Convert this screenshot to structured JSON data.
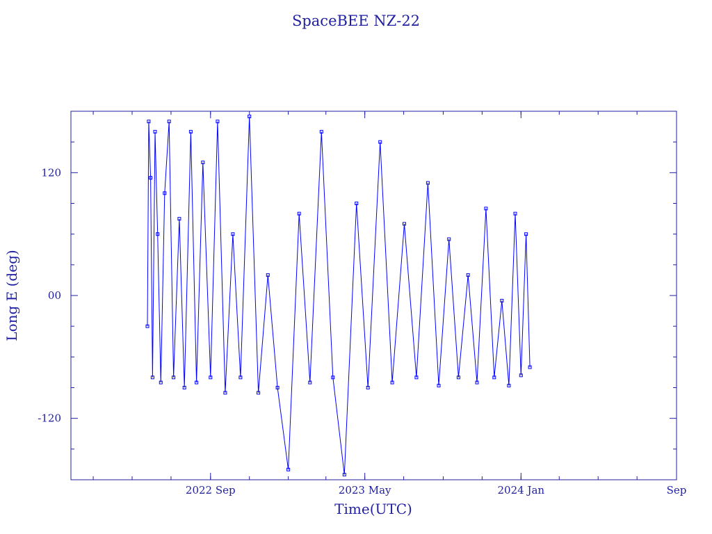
{
  "chart_data": {
    "type": "line",
    "title": "SpaceBEE NZ-22",
    "xlabel": "Time(UTC)",
    "ylabel": "Long E (deg)",
    "xlim": [
      "2022-01-25",
      "2024-09-01"
    ],
    "ylim": [
      -180,
      180
    ],
    "x_ticks": [
      {
        "date": "2022-09-01",
        "label": "2022 Sep"
      },
      {
        "date": "2023-05-01",
        "label": "2023 May"
      },
      {
        "date": "2024-01-01",
        "label": "2024 Jan"
      },
      {
        "date": "2024-09-01",
        "label": "Sep"
      }
    ],
    "y_ticks": [
      {
        "value": 120,
        "label": "120"
      },
      {
        "value": 0,
        "label": "00"
      },
      {
        "value": -120,
        "label": "-120"
      }
    ],
    "grid": false,
    "color": "#0000ff",
    "frame_color": "#1f1f9f",
    "series": [
      {
        "marker": "square",
        "x": [
          "2022-05-25",
          "2022-05-27",
          "2022-05-30",
          "2022-06-02",
          "2022-06-06",
          "2022-06-10",
          "2022-06-15",
          "2022-06-21",
          "2022-06-28",
          "2022-07-05",
          "2022-07-14",
          "2022-07-22",
          "2022-08-01",
          "2022-08-10",
          "2022-08-20",
          "2022-09-01",
          "2022-09-12",
          "2022-09-24",
          "2022-10-06",
          "2022-10-18",
          "2022-11-01",
          "2022-11-15",
          "2022-11-30",
          "2022-12-15",
          "2023-01-01",
          "2023-01-18",
          "2023-02-04",
          "2023-02-22",
          "2023-03-12",
          "2023-03-30",
          "2023-04-18",
          "2023-05-06",
          "2023-05-25",
          "2023-06-13",
          "2023-07-02",
          "2023-07-21",
          "2023-08-08",
          "2023-08-25",
          "2023-09-10",
          "2023-09-25",
          "2023-10-10",
          "2023-10-24",
          "2023-11-07",
          "2023-11-20",
          "2023-12-02",
          "2023-12-13",
          "2023-12-23",
          "2024-01-01",
          "2024-01-09",
          "2024-01-15"
        ],
        "y": [
          -30,
          170,
          115,
          -80,
          160,
          60,
          -85,
          100,
          170,
          -80,
          75,
          -90,
          160,
          -85,
          130,
          -80,
          170,
          -95,
          60,
          -80,
          175,
          -95,
          20,
          -90,
          -170,
          80,
          -85,
          160,
          -80,
          -175,
          90,
          -90,
          150,
          -85,
          70,
          -80,
          110,
          -88,
          55,
          -80,
          20,
          -85,
          85,
          -80,
          -5,
          -88,
          80,
          -78,
          60,
          -70
        ]
      }
    ]
  }
}
